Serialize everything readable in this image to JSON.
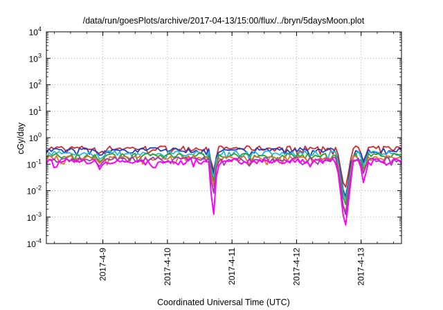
{
  "chart_data": {
    "type": "line",
    "title": "/data/run/goesPlots/archive/2017-04-13/15:00/flux/../bryn/5daysMoon.plot",
    "xlabel": "Coordinated Universal Time (UTC)",
    "ylabel": "cGy/day",
    "yscale": "log",
    "ylim": [
      0.0001,
      10000
    ],
    "xlim": [
      "2017-04-08 03:00",
      "2017-04-13 15:00"
    ],
    "grid": true,
    "legend": "none",
    "y_ticks": [
      {
        "base": "10",
        "exp": "-4"
      },
      {
        "base": "10",
        "exp": "-3"
      },
      {
        "base": "10",
        "exp": "-2"
      },
      {
        "base": "10",
        "exp": "-1"
      },
      {
        "base": "10",
        "exp": "0"
      },
      {
        "base": "10",
        "exp": "1"
      },
      {
        "base": "10",
        "exp": "2"
      },
      {
        "base": "10",
        "exp": "3"
      },
      {
        "base": "10",
        "exp": "4"
      }
    ],
    "x_ticks": [
      "2017-4-9",
      "2017-4-10",
      "2017-4-11",
      "2017-4-12",
      "2017-4-13"
    ],
    "series": [
      {
        "color": "#d62728",
        "baseline": 0.4,
        "dips": [
          [
            "2017-04-08 23:00",
            0.25
          ],
          [
            "2017-04-10 17:00",
            0.04
          ],
          [
            "2017-04-12 18:00",
            0.01
          ],
          [
            "2017-04-13 01:00",
            0.12
          ]
        ]
      },
      {
        "color": "#1f3fbf",
        "baseline": 0.34,
        "dips": [
          [
            "2017-04-08 23:00",
            0.2
          ],
          [
            "2017-04-10 17:00",
            0.03
          ],
          [
            "2017-04-12 18:00",
            0.004
          ],
          [
            "2017-04-13 01:00",
            0.1
          ]
        ]
      },
      {
        "color": "#2ab8d8",
        "baseline": 0.26,
        "dips": [
          [
            "2017-04-08 23:00",
            0.15
          ],
          [
            "2017-04-10 17:00",
            0.02
          ],
          [
            "2017-04-12 18:00",
            0.003
          ],
          [
            "2017-04-13 01:00",
            0.08
          ]
        ]
      },
      {
        "color": "#2ca02c",
        "baseline": 0.21,
        "dips": [
          [
            "2017-04-08 23:00",
            0.12
          ],
          [
            "2017-04-10 17:00",
            0.015
          ],
          [
            "2017-04-12 18:00",
            0.002
          ],
          [
            "2017-04-13 01:00",
            0.06
          ]
        ]
      },
      {
        "color": "#e07030",
        "baseline": 0.17,
        "dips": [
          [
            "2017-04-08 23:00",
            0.1
          ],
          [
            "2017-04-10 17:00",
            0.01
          ],
          [
            "2017-04-12 18:00",
            0.001
          ],
          [
            "2017-04-13 01:00",
            0.05
          ]
        ]
      },
      {
        "color": "#9b3bb0",
        "baseline": 0.15,
        "dips": [
          [
            "2017-04-08 23:00",
            0.08
          ],
          [
            "2017-04-10 17:00",
            0.005
          ],
          [
            "2017-04-12 18:00",
            0.0008
          ],
          [
            "2017-04-13 01:00",
            0.04
          ]
        ]
      },
      {
        "color": "#ff00ff",
        "baseline": 0.13,
        "dips": [
          [
            "2017-04-08 23:00",
            0.06
          ],
          [
            "2017-04-10 17:00",
            0.0006
          ],
          [
            "2017-04-12 18:00",
            0.0003
          ],
          [
            "2017-04-13 01:00",
            0.017
          ]
        ]
      }
    ]
  }
}
